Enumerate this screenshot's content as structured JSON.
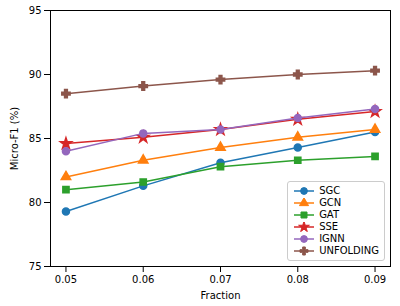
{
  "chart_data": {
    "type": "line",
    "x_label": "Fraction",
    "y_label": "Micro-F1 (%)",
    "x": [
      0.05,
      0.06,
      0.07,
      0.08,
      0.09
    ],
    "xlim": [
      0.048,
      0.092
    ],
    "xticks": [
      0.05,
      0.06,
      0.07,
      0.08,
      0.09
    ],
    "ylim": [
      75,
      95
    ],
    "yticks": [
      75,
      80,
      85,
      90,
      95
    ],
    "grid": false,
    "legend": "lower right",
    "series": [
      {
        "name": "SGC",
        "color": "#1f77b4",
        "marker": "circle",
        "values": [
          79.3,
          81.3,
          83.1,
          84.3,
          85.5
        ]
      },
      {
        "name": "GCN",
        "color": "#ff7f0e",
        "marker": "triangle",
        "values": [
          82.0,
          83.3,
          84.3,
          85.1,
          85.7
        ]
      },
      {
        "name": "GAT",
        "color": "#2ca02c",
        "marker": "square",
        "values": [
          81.0,
          81.6,
          82.8,
          83.3,
          83.6
        ]
      },
      {
        "name": "SSE",
        "color": "#d62728",
        "marker": "star",
        "values": [
          84.6,
          85.1,
          85.7,
          86.5,
          87.1
        ]
      },
      {
        "name": "IGNN",
        "color": "#9467bd",
        "marker": "circle",
        "values": [
          84.0,
          85.4,
          85.7,
          86.6,
          87.3
        ]
      },
      {
        "name": "UNFOLDING",
        "color": "#8c564b",
        "marker": "plus",
        "values": [
          88.5,
          89.1,
          89.6,
          90.0,
          90.3
        ]
      }
    ]
  }
}
